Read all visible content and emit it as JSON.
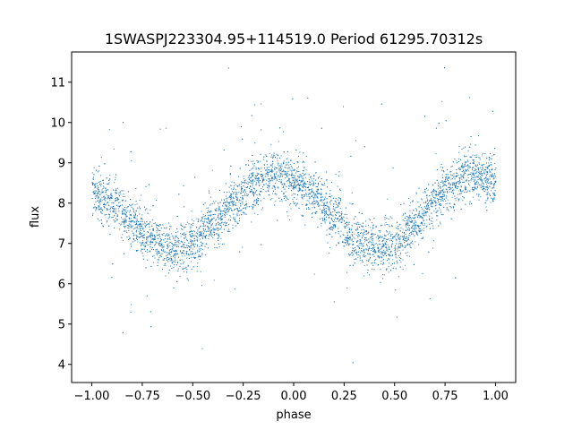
{
  "chart_data": {
    "type": "scatter",
    "title": "1SWASPJ223304.95+114519.0 Period 61295.70312s",
    "xlabel": "phase",
    "ylabel": "flux",
    "xlim": [
      -1.1,
      1.1
    ],
    "ylim": [
      3.55,
      11.75
    ],
    "x_ticks": [
      -1.0,
      -0.75,
      -0.5,
      -0.25,
      0.0,
      0.25,
      0.5,
      0.75,
      1.0
    ],
    "x_tick_labels": [
      "−1.00",
      "−0.75",
      "−0.50",
      "−0.25",
      "0.00",
      "0.25",
      "0.50",
      "0.75",
      "1.00"
    ],
    "y_ticks": [
      4,
      5,
      6,
      7,
      8,
      9,
      10,
      11
    ],
    "y_tick_labels": [
      "4",
      "5",
      "6",
      "7",
      "8",
      "9",
      "10",
      "11"
    ],
    "grid": false,
    "series": [
      {
        "color": "#1f77b4",
        "phase_range": [
          -1.0,
          1.0
        ],
        "curve_phase": [
          -1.0,
          -0.9,
          -0.8,
          -0.7,
          -0.6,
          -0.5,
          -0.4,
          -0.3,
          -0.2,
          -0.1,
          0.0,
          0.1,
          0.2,
          0.3,
          0.4,
          0.5,
          0.6,
          0.7,
          0.8,
          0.9,
          1.0
        ],
        "curve_flux": [
          8.3,
          8.0,
          7.5,
          7.1,
          6.9,
          7.0,
          7.5,
          8.0,
          8.5,
          8.7,
          8.6,
          8.2,
          7.7,
          7.1,
          6.9,
          7.0,
          7.5,
          8.1,
          8.6,
          8.7,
          8.5
        ],
        "scatter_sd": 0.3
      }
    ]
  }
}
